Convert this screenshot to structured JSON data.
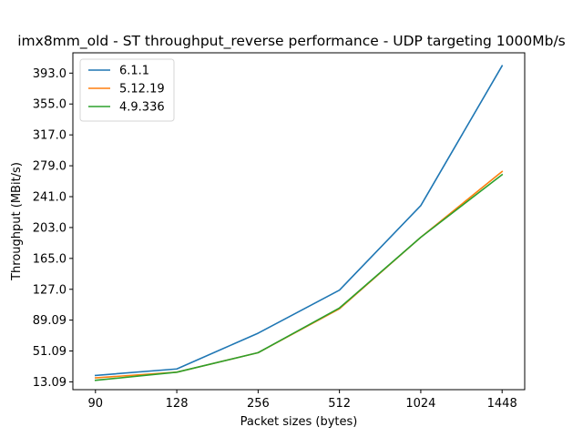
{
  "chart_data": {
    "type": "line",
    "title": "imx8mm_old - ST throughput_reverse performance - UDP targeting 1000Mb/s",
    "xlabel": "Packet sizes (bytes)",
    "ylabel": "Throughput (MBit/s)",
    "categories": [
      "90",
      "128",
      "256",
      "512",
      "1024",
      "1448"
    ],
    "yticks": [
      "13.09",
      "51.09",
      "89.09",
      "127.0",
      "165.0",
      "203.0",
      "241.0",
      "279.0",
      "317.0",
      "355.0",
      "393.0"
    ],
    "ytick_values": [
      13.09,
      51.09,
      89.09,
      127.0,
      165.0,
      203.0,
      241.0,
      279.0,
      317.0,
      355.0,
      393.0
    ],
    "ylim": [
      3.5,
      418
    ],
    "legend_position": "top-left",
    "grid": false,
    "series": [
      {
        "name": "6.1.1",
        "color": "#1f77b4",
        "values": [
          21.0,
          29.0,
          73.0,
          126.0,
          230.0,
          402.0
        ]
      },
      {
        "name": "5.12.19",
        "color": "#ff7f0e",
        "values": [
          18.0,
          25.0,
          49.0,
          103.0,
          191.0,
          272.0
        ]
      },
      {
        "name": "4.9.336",
        "color": "#2ca02c",
        "values": [
          15.0,
          25.0,
          49.0,
          104.0,
          191.0,
          268.0
        ]
      }
    ]
  }
}
